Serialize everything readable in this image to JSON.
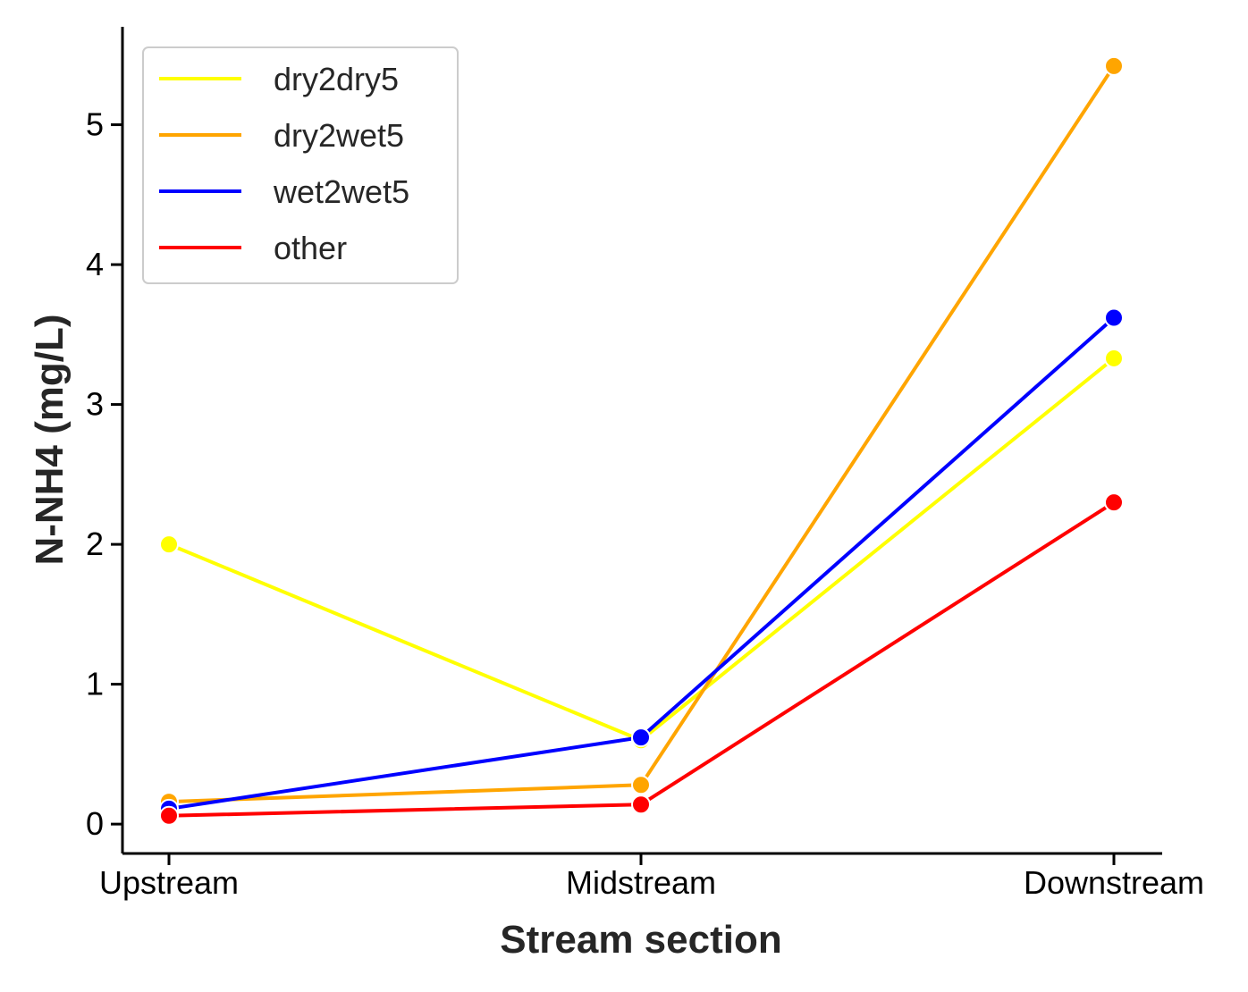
{
  "chart_data": {
    "type": "line",
    "categories": [
      "Upstream",
      "Midstream",
      "Downstream"
    ],
    "xlabel": "Stream section",
    "ylabel": "N-NH4 (mg/L)",
    "ylim": [
      -0.21,
      5.7
    ],
    "yticks": [
      0,
      1,
      2,
      3,
      4,
      5
    ],
    "grid": false,
    "legend_position": "top-left",
    "series": [
      {
        "name": "dry2dry5",
        "color": "#ffff00",
        "values": [
          2.0,
          0.6,
          3.33
        ]
      },
      {
        "name": "dry2wet5",
        "color": "#ffa500",
        "values": [
          0.16,
          0.28,
          5.42
        ]
      },
      {
        "name": "wet2wet5",
        "color": "#0000ff",
        "values": [
          0.11,
          0.62,
          3.62
        ]
      },
      {
        "name": "other",
        "color": "#ff0000",
        "values": [
          0.06,
          0.14,
          2.3
        ]
      }
    ]
  }
}
